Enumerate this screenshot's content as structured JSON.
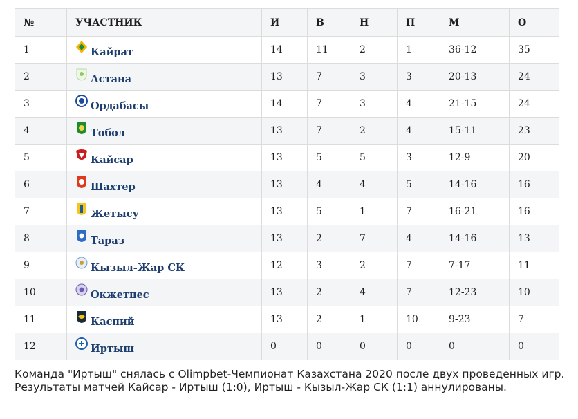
{
  "table": {
    "headers": [
      "№",
      "УЧАСТНИК",
      "И",
      "В",
      "Н",
      "П",
      "М",
      "О"
    ],
    "rows": [
      {
        "pos": "1",
        "team": "Кайрат",
        "logo": "kairat-logo",
        "p": "14",
        "w": "11",
        "d": "2",
        "l": "1",
        "g": "36-12",
        "pts": "35"
      },
      {
        "pos": "2",
        "team": "Астана",
        "logo": "astana-logo",
        "p": "13",
        "w": "7",
        "d": "3",
        "l": "3",
        "g": "20-13",
        "pts": "24"
      },
      {
        "pos": "3",
        "team": "Ордабасы",
        "logo": "ordabasy-logo",
        "p": "14",
        "w": "7",
        "d": "3",
        "l": "4",
        "g": "21-15",
        "pts": "24"
      },
      {
        "pos": "4",
        "team": "Тобол",
        "logo": "tobol-logo",
        "p": "13",
        "w": "7",
        "d": "2",
        "l": "4",
        "g": "15-11",
        "pts": "23"
      },
      {
        "pos": "5",
        "team": "Кайсар",
        "logo": "kaisar-logo",
        "p": "13",
        "w": "5",
        "d": "5",
        "l": "3",
        "g": "12-9",
        "pts": "20"
      },
      {
        "pos": "6",
        "team": "Шахтер",
        "logo": "shakhter-logo",
        "p": "13",
        "w": "4",
        "d": "4",
        "l": "5",
        "g": "14-16",
        "pts": "16"
      },
      {
        "pos": "7",
        "team": "Жетысу",
        "logo": "zhetysu-logo",
        "p": "13",
        "w": "5",
        "d": "1",
        "l": "7",
        "g": "16-21",
        "pts": "16"
      },
      {
        "pos": "8",
        "team": "Тараз",
        "logo": "taraz-logo",
        "p": "13",
        "w": "2",
        "d": "7",
        "l": "4",
        "g": "14-16",
        "pts": "13"
      },
      {
        "pos": "9",
        "team": "Кызыл-Жар СК",
        "logo": "kyzyl-zhar-logo",
        "p": "12",
        "w": "3",
        "d": "2",
        "l": "7",
        "g": "7-17",
        "pts": "11"
      },
      {
        "pos": "10",
        "team": "Окжетпес",
        "logo": "okzhetpes-logo",
        "p": "13",
        "w": "2",
        "d": "4",
        "l": "7",
        "g": "12-23",
        "pts": "10"
      },
      {
        "pos": "11",
        "team": "Каспий",
        "logo": "kaspiy-logo",
        "p": "13",
        "w": "2",
        "d": "1",
        "l": "10",
        "g": "9-23",
        "pts": "7"
      },
      {
        "pos": "12",
        "team": "Иртыш",
        "logo": "irtysh-logo",
        "p": "0",
        "w": "0",
        "d": "0",
        "l": "0",
        "g": "0",
        "pts": "0"
      }
    ]
  },
  "note": "Команда \"Иртыш\" снялась с Olimpbet-Чемпионат Казахстана 2020 после двух проведенных игр. Результаты матчей Кайсар - Иртыш (1:0), Иртыш - Кызыл-Жар СК (1:1) аннулированы.",
  "colors": {
    "link": "#1c3d6e",
    "header_bg": "#f4f5f7",
    "border": "#dcdcdc"
  }
}
